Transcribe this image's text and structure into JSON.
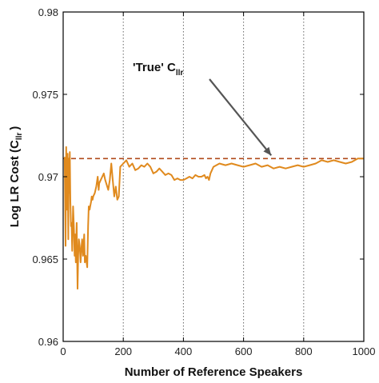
{
  "chart_data": {
    "type": "line",
    "title": "",
    "xlabel": "Number of Reference Speakers",
    "ylabel": {
      "main": "Log LR Cost (C",
      "sub": "llr",
      "close": ")"
    },
    "xlim": [
      0,
      1000
    ],
    "ylim": [
      0.96,
      0.98
    ],
    "xticks": [
      0,
      200,
      400,
      600,
      800,
      1000
    ],
    "xtick_labels": [
      "0",
      "200",
      "400",
      "600",
      "800",
      "1000"
    ],
    "yticks": [
      0.96,
      0.965,
      0.97,
      0.975,
      0.98
    ],
    "ytick_labels": [
      "0.96",
      "0.965",
      "0.97",
      "0.975",
      "0.98"
    ],
    "grid": "vertical dotted lines at x ticks",
    "colors": {
      "series": "#e08a1e",
      "reference": "#b04a1a",
      "arrow": "#555555",
      "grid": "#666666"
    },
    "reference_line": {
      "y": 0.9711,
      "style": "dashed"
    },
    "annotation": {
      "text_main": "'True' C",
      "text_sub": "llr",
      "arrow_to": [
        700,
        0.9711
      ]
    },
    "series": [
      {
        "x": [
          5,
          8,
          10,
          12,
          14,
          15,
          17,
          19,
          20,
          22,
          24,
          26,
          28,
          30,
          33,
          36,
          38,
          40,
          42,
          45,
          48,
          50,
          52,
          55,
          58,
          60,
          63,
          66,
          70,
          72,
          75,
          78,
          80,
          83,
          85,
          88,
          90,
          93,
          95,
          98,
          100,
          105,
          110,
          115,
          118,
          120,
          125,
          130,
          135,
          140,
          145,
          150,
          155,
          160,
          165,
          170,
          175,
          180,
          185,
          190,
          200,
          210,
          220,
          230,
          240,
          250,
          260,
          270,
          280,
          290,
          300,
          310,
          320,
          330,
          340,
          350,
          360,
          370,
          380,
          390,
          400,
          410,
          420,
          430,
          440,
          450,
          460,
          470,
          475,
          480,
          485,
          490,
          500,
          520,
          540,
          560,
          580,
          600,
          620,
          640,
          660,
          680,
          700,
          720,
          740,
          760,
          780,
          800,
          820,
          840,
          860,
          880,
          900,
          920,
          940,
          960,
          980,
          1000
        ],
        "y": [
          0.9712,
          0.9658,
          0.9718,
          0.968,
          0.9702,
          0.9714,
          0.9662,
          0.9711,
          0.969,
          0.9715,
          0.9685,
          0.967,
          0.9672,
          0.9655,
          0.9682,
          0.9668,
          0.9652,
          0.9665,
          0.9648,
          0.9672,
          0.9632,
          0.9652,
          0.9662,
          0.9658,
          0.9648,
          0.9655,
          0.9662,
          0.9652,
          0.9665,
          0.9648,
          0.9652,
          0.9648,
          0.9645,
          0.967,
          0.9682,
          0.968,
          0.9682,
          0.9685,
          0.9688,
          0.9686,
          0.9688,
          0.969,
          0.9694,
          0.97,
          0.9692,
          0.9696,
          0.9698,
          0.97,
          0.9702,
          0.9698,
          0.9695,
          0.9692,
          0.9698,
          0.9708,
          0.9698,
          0.9688,
          0.9694,
          0.9686,
          0.9688,
          0.9706,
          0.9708,
          0.971,
          0.9706,
          0.9708,
          0.9704,
          0.9705,
          0.9707,
          0.9706,
          0.9708,
          0.9706,
          0.9702,
          0.9703,
          0.9705,
          0.9703,
          0.9701,
          0.9702,
          0.9701,
          0.9698,
          0.9699,
          0.9698,
          0.9698,
          0.9699,
          0.97,
          0.9699,
          0.9701,
          0.97,
          0.97,
          0.9701,
          0.9699,
          0.97,
          0.9698,
          0.9702,
          0.9706,
          0.9708,
          0.9707,
          0.9708,
          0.9707,
          0.9706,
          0.9707,
          0.9708,
          0.9706,
          0.9707,
          0.9705,
          0.9706,
          0.9705,
          0.9706,
          0.9707,
          0.9706,
          0.9707,
          0.9708,
          0.971,
          0.9709,
          0.971,
          0.9709,
          0.9708,
          0.9709,
          0.9711,
          0.9711
        ]
      }
    ]
  }
}
